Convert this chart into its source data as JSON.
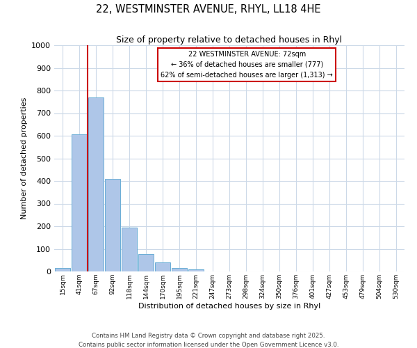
{
  "title_line1": "22, WESTMINSTER AVENUE, RHYL, LL18 4HE",
  "title_line2": "Size of property relative to detached houses in Rhyl",
  "bar_labels": [
    "15sqm",
    "41sqm",
    "67sqm",
    "92sqm",
    "118sqm",
    "144sqm",
    "170sqm",
    "195sqm",
    "221sqm",
    "247sqm",
    "273sqm",
    "298sqm",
    "324sqm",
    "350sqm",
    "376sqm",
    "401sqm",
    "427sqm",
    "453sqm",
    "479sqm",
    "504sqm",
    "530sqm"
  ],
  "bar_values": [
    15,
    605,
    770,
    410,
    193,
    78,
    40,
    15,
    10,
    0,
    0,
    0,
    0,
    0,
    0,
    0,
    0,
    0,
    0,
    0,
    0
  ],
  "bar_color": "#aec6e8",
  "bar_edge_color": "#6aaed6",
  "ylabel": "Number of detached properties",
  "xlabel": "Distribution of detached houses by size in Rhyl",
  "ylim": [
    0,
    1000
  ],
  "yticks": [
    0,
    100,
    200,
    300,
    400,
    500,
    600,
    700,
    800,
    900,
    1000
  ],
  "vline_x_index": 2,
  "vline_color": "#cc0000",
  "annotation_title": "22 WESTMINSTER AVENUE: 72sqm",
  "annotation_line1": "← 36% of detached houses are smaller (777)",
  "annotation_line2": "62% of semi-detached houses are larger (1,313) →",
  "annotation_box_color": "#ffffff",
  "annotation_box_edge": "#cc0000",
  "footer_line1": "Contains HM Land Registry data © Crown copyright and database right 2025.",
  "footer_line2": "Contains public sector information licensed under the Open Government Licence v3.0.",
  "background_color": "#ffffff",
  "grid_color": "#ccd9e8",
  "figsize": [
    6.0,
    5.0
  ],
  "dpi": 100
}
